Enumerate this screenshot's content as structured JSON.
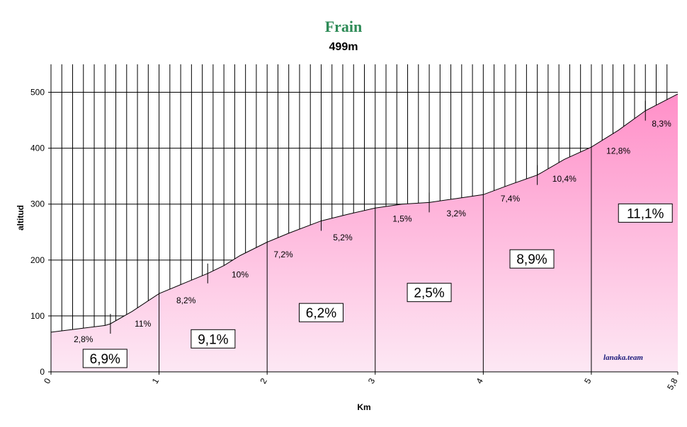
{
  "chart_data": {
    "type": "area",
    "title": "Frain",
    "subtitle": "499m",
    "xlabel": "Km",
    "ylabel": "altitud",
    "xlim": [
      0,
      5.8
    ],
    "ylim": [
      0,
      550
    ],
    "x_ticks": [
      "0",
      "1",
      "2",
      "3",
      "4",
      "5",
      "5,8"
    ],
    "x_tick_values": [
      0,
      1,
      2,
      3,
      4,
      5,
      5.8
    ],
    "y_ticks": [
      0,
      100,
      200,
      300,
      400,
      500
    ],
    "grid": true,
    "profile": [
      {
        "x": 0,
        "y": 71
      },
      {
        "x": 0.25,
        "y": 77
      },
      {
        "x": 0.5,
        "y": 83
      },
      {
        "x": 0.55,
        "y": 86
      },
      {
        "x": 0.75,
        "y": 108
      },
      {
        "x": 1.0,
        "y": 140
      },
      {
        "x": 1.25,
        "y": 160
      },
      {
        "x": 1.45,
        "y": 176
      },
      {
        "x": 1.6,
        "y": 190
      },
      {
        "x": 1.75,
        "y": 208
      },
      {
        "x": 2.0,
        "y": 232
      },
      {
        "x": 2.2,
        "y": 248
      },
      {
        "x": 2.5,
        "y": 270
      },
      {
        "x": 2.75,
        "y": 282
      },
      {
        "x": 3.0,
        "y": 293
      },
      {
        "x": 3.25,
        "y": 300
      },
      {
        "x": 3.5,
        "y": 303
      },
      {
        "x": 3.75,
        "y": 310
      },
      {
        "x": 4.0,
        "y": 317
      },
      {
        "x": 4.25,
        "y": 335
      },
      {
        "x": 4.5,
        "y": 352
      },
      {
        "x": 4.75,
        "y": 380
      },
      {
        "x": 5.0,
        "y": 402
      },
      {
        "x": 5.25,
        "y": 432
      },
      {
        "x": 5.5,
        "y": 467
      },
      {
        "x": 5.8,
        "y": 497
      }
    ],
    "km_dividers": [
      1,
      2,
      3,
      4,
      5
    ],
    "half_km_ticks": [
      0.55,
      1.45,
      2.5,
      3.5,
      4.5,
      5.5
    ],
    "segment_grades": [
      {
        "x": 0.3,
        "y": 58,
        "label": "2,8%"
      },
      {
        "x": 0.85,
        "y": 86,
        "label": "11%"
      },
      {
        "x": 1.25,
        "y": 128,
        "label": "8,2%"
      },
      {
        "x": 1.75,
        "y": 174,
        "label": "10%"
      },
      {
        "x": 2.15,
        "y": 210,
        "label": "7,2%"
      },
      {
        "x": 2.7,
        "y": 240,
        "label": "5,2%"
      },
      {
        "x": 3.25,
        "y": 274,
        "label": "1,5%"
      },
      {
        "x": 3.75,
        "y": 283,
        "label": "3,2%"
      },
      {
        "x": 4.25,
        "y": 310,
        "label": "7,4%"
      },
      {
        "x": 4.75,
        "y": 345,
        "label": "10,4%"
      },
      {
        "x": 5.25,
        "y": 395,
        "label": "12,8%"
      },
      {
        "x": 5.65,
        "y": 444,
        "label": "8,3%"
      }
    ],
    "km_grades": [
      {
        "x": 0.5,
        "y": 24,
        "label": "6,9%"
      },
      {
        "x": 1.5,
        "y": 59,
        "label": "9,1%"
      },
      {
        "x": 2.5,
        "y": 106,
        "label": "6,2%"
      },
      {
        "x": 3.5,
        "y": 142,
        "label": "2,5%"
      },
      {
        "x": 4.45,
        "y": 202,
        "label": "8,9%"
      },
      {
        "x": 5.5,
        "y": 284,
        "label": "11,1%"
      }
    ],
    "watermark": "lanaka.team",
    "colors": {
      "fill_top": "#ff8fc8",
      "fill_bottom": "#fde8f4",
      "title": "#2e8b57",
      "watermark": "#1a1a7a"
    }
  }
}
